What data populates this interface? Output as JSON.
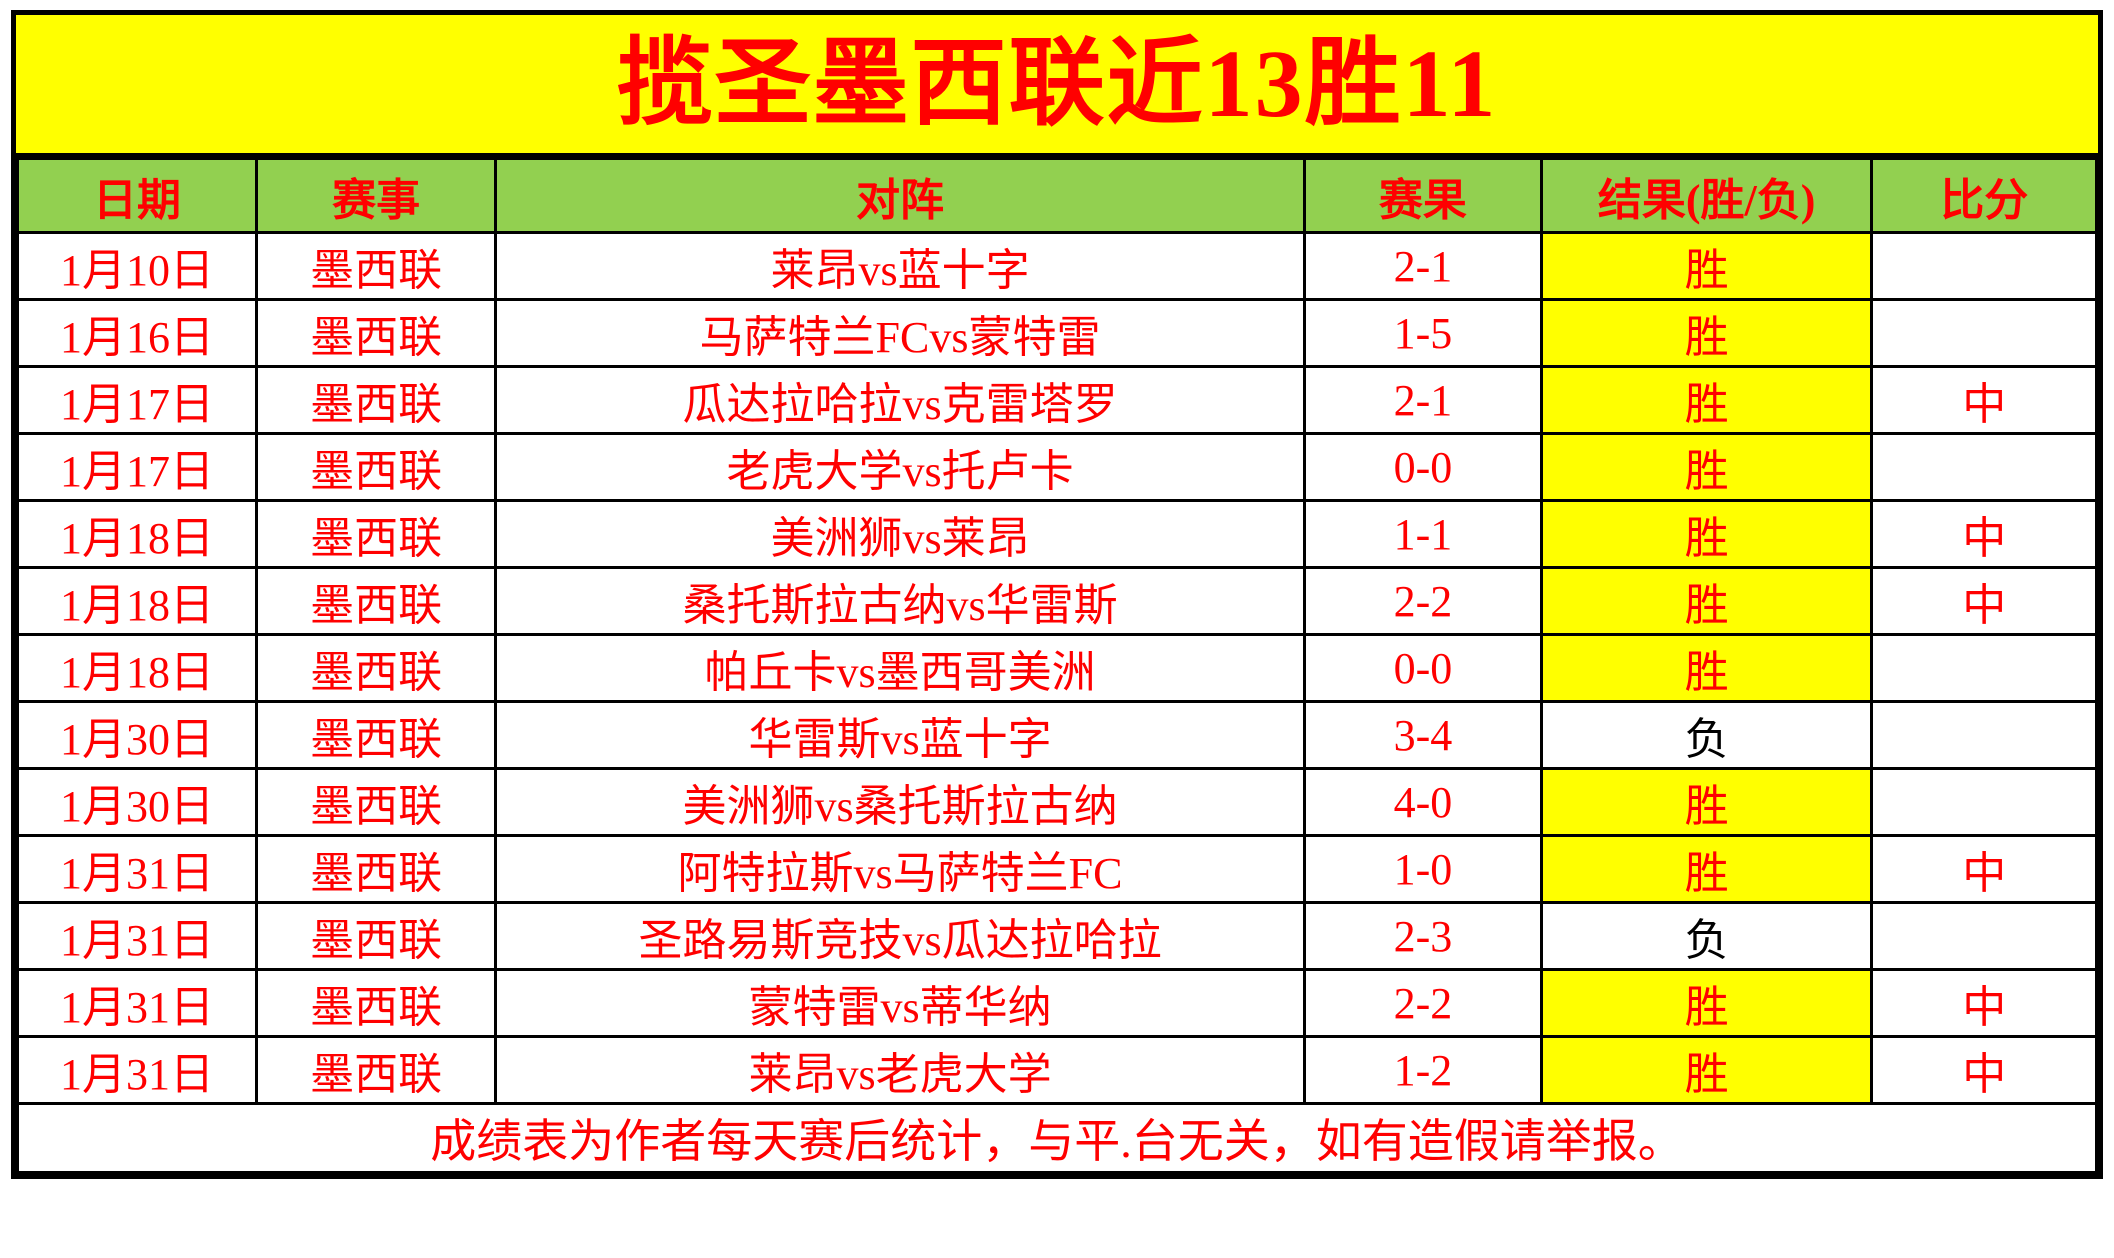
{
  "colors": {
    "red": "#ff0000",
    "yellow": "#ffff00",
    "green": "#92d050",
    "border": "#000000"
  },
  "chart_data": {
    "type": "table",
    "title": "揽圣墨西联近13胜11",
    "columns": [
      "日期",
      "赛事",
      "对阵",
      "赛果",
      "结果(胜/负)",
      "比分"
    ],
    "rows": [
      {
        "date": "1月10日",
        "competition": "墨西联",
        "match": "莱昂vs蓝十字",
        "score": "2-1",
        "result": "胜",
        "mark": ""
      },
      {
        "date": "1月16日",
        "competition": "墨西联",
        "match": "马萨特兰FCvs蒙特雷",
        "score": "1-5",
        "result": "胜",
        "mark": ""
      },
      {
        "date": "1月17日",
        "competition": "墨西联",
        "match": "瓜达拉哈拉vs克雷塔罗",
        "score": "2-1",
        "result": "胜",
        "mark": "中"
      },
      {
        "date": "1月17日",
        "competition": "墨西联",
        "match": "老虎大学vs托卢卡",
        "score": "0-0",
        "result": "胜",
        "mark": ""
      },
      {
        "date": "1月18日",
        "competition": "墨西联",
        "match": "美洲狮vs莱昂",
        "score": "1-1",
        "result": "胜",
        "mark": "中"
      },
      {
        "date": "1月18日",
        "competition": "墨西联",
        "match": "桑托斯拉古纳vs华雷斯",
        "score": "2-2",
        "result": "胜",
        "mark": "中"
      },
      {
        "date": "1月18日",
        "competition": "墨西联",
        "match": "帕丘卡vs墨西哥美洲",
        "score": "0-0",
        "result": "胜",
        "mark": ""
      },
      {
        "date": "1月30日",
        "competition": "墨西联",
        "match": "华雷斯vs蓝十字",
        "score": "3-4",
        "result": "负",
        "mark": ""
      },
      {
        "date": "1月30日",
        "competition": "墨西联",
        "match": "美洲狮vs桑托斯拉古纳",
        "score": "4-0",
        "result": "胜",
        "mark": ""
      },
      {
        "date": "1月31日",
        "competition": "墨西联",
        "match": "阿特拉斯vs马萨特兰FC",
        "score": "1-0",
        "result": "胜",
        "mark": "中"
      },
      {
        "date": "1月31日",
        "competition": "墨西联",
        "match": "圣路易斯竞技vs瓜达拉哈拉",
        "score": "2-3",
        "result": "负",
        "mark": ""
      },
      {
        "date": "1月31日",
        "competition": "墨西联",
        "match": "蒙特雷vs蒂华纳",
        "score": "2-2",
        "result": "胜",
        "mark": "中"
      },
      {
        "date": "1月31日",
        "competition": "墨西联",
        "match": "莱昂vs老虎大学",
        "score": "1-2",
        "result": "胜",
        "mark": "中"
      }
    ],
    "win_label": "胜",
    "loss_label": "负",
    "footer": "成绩表为作者每天赛后统计，与平.台无关，如有造假请举报。"
  }
}
